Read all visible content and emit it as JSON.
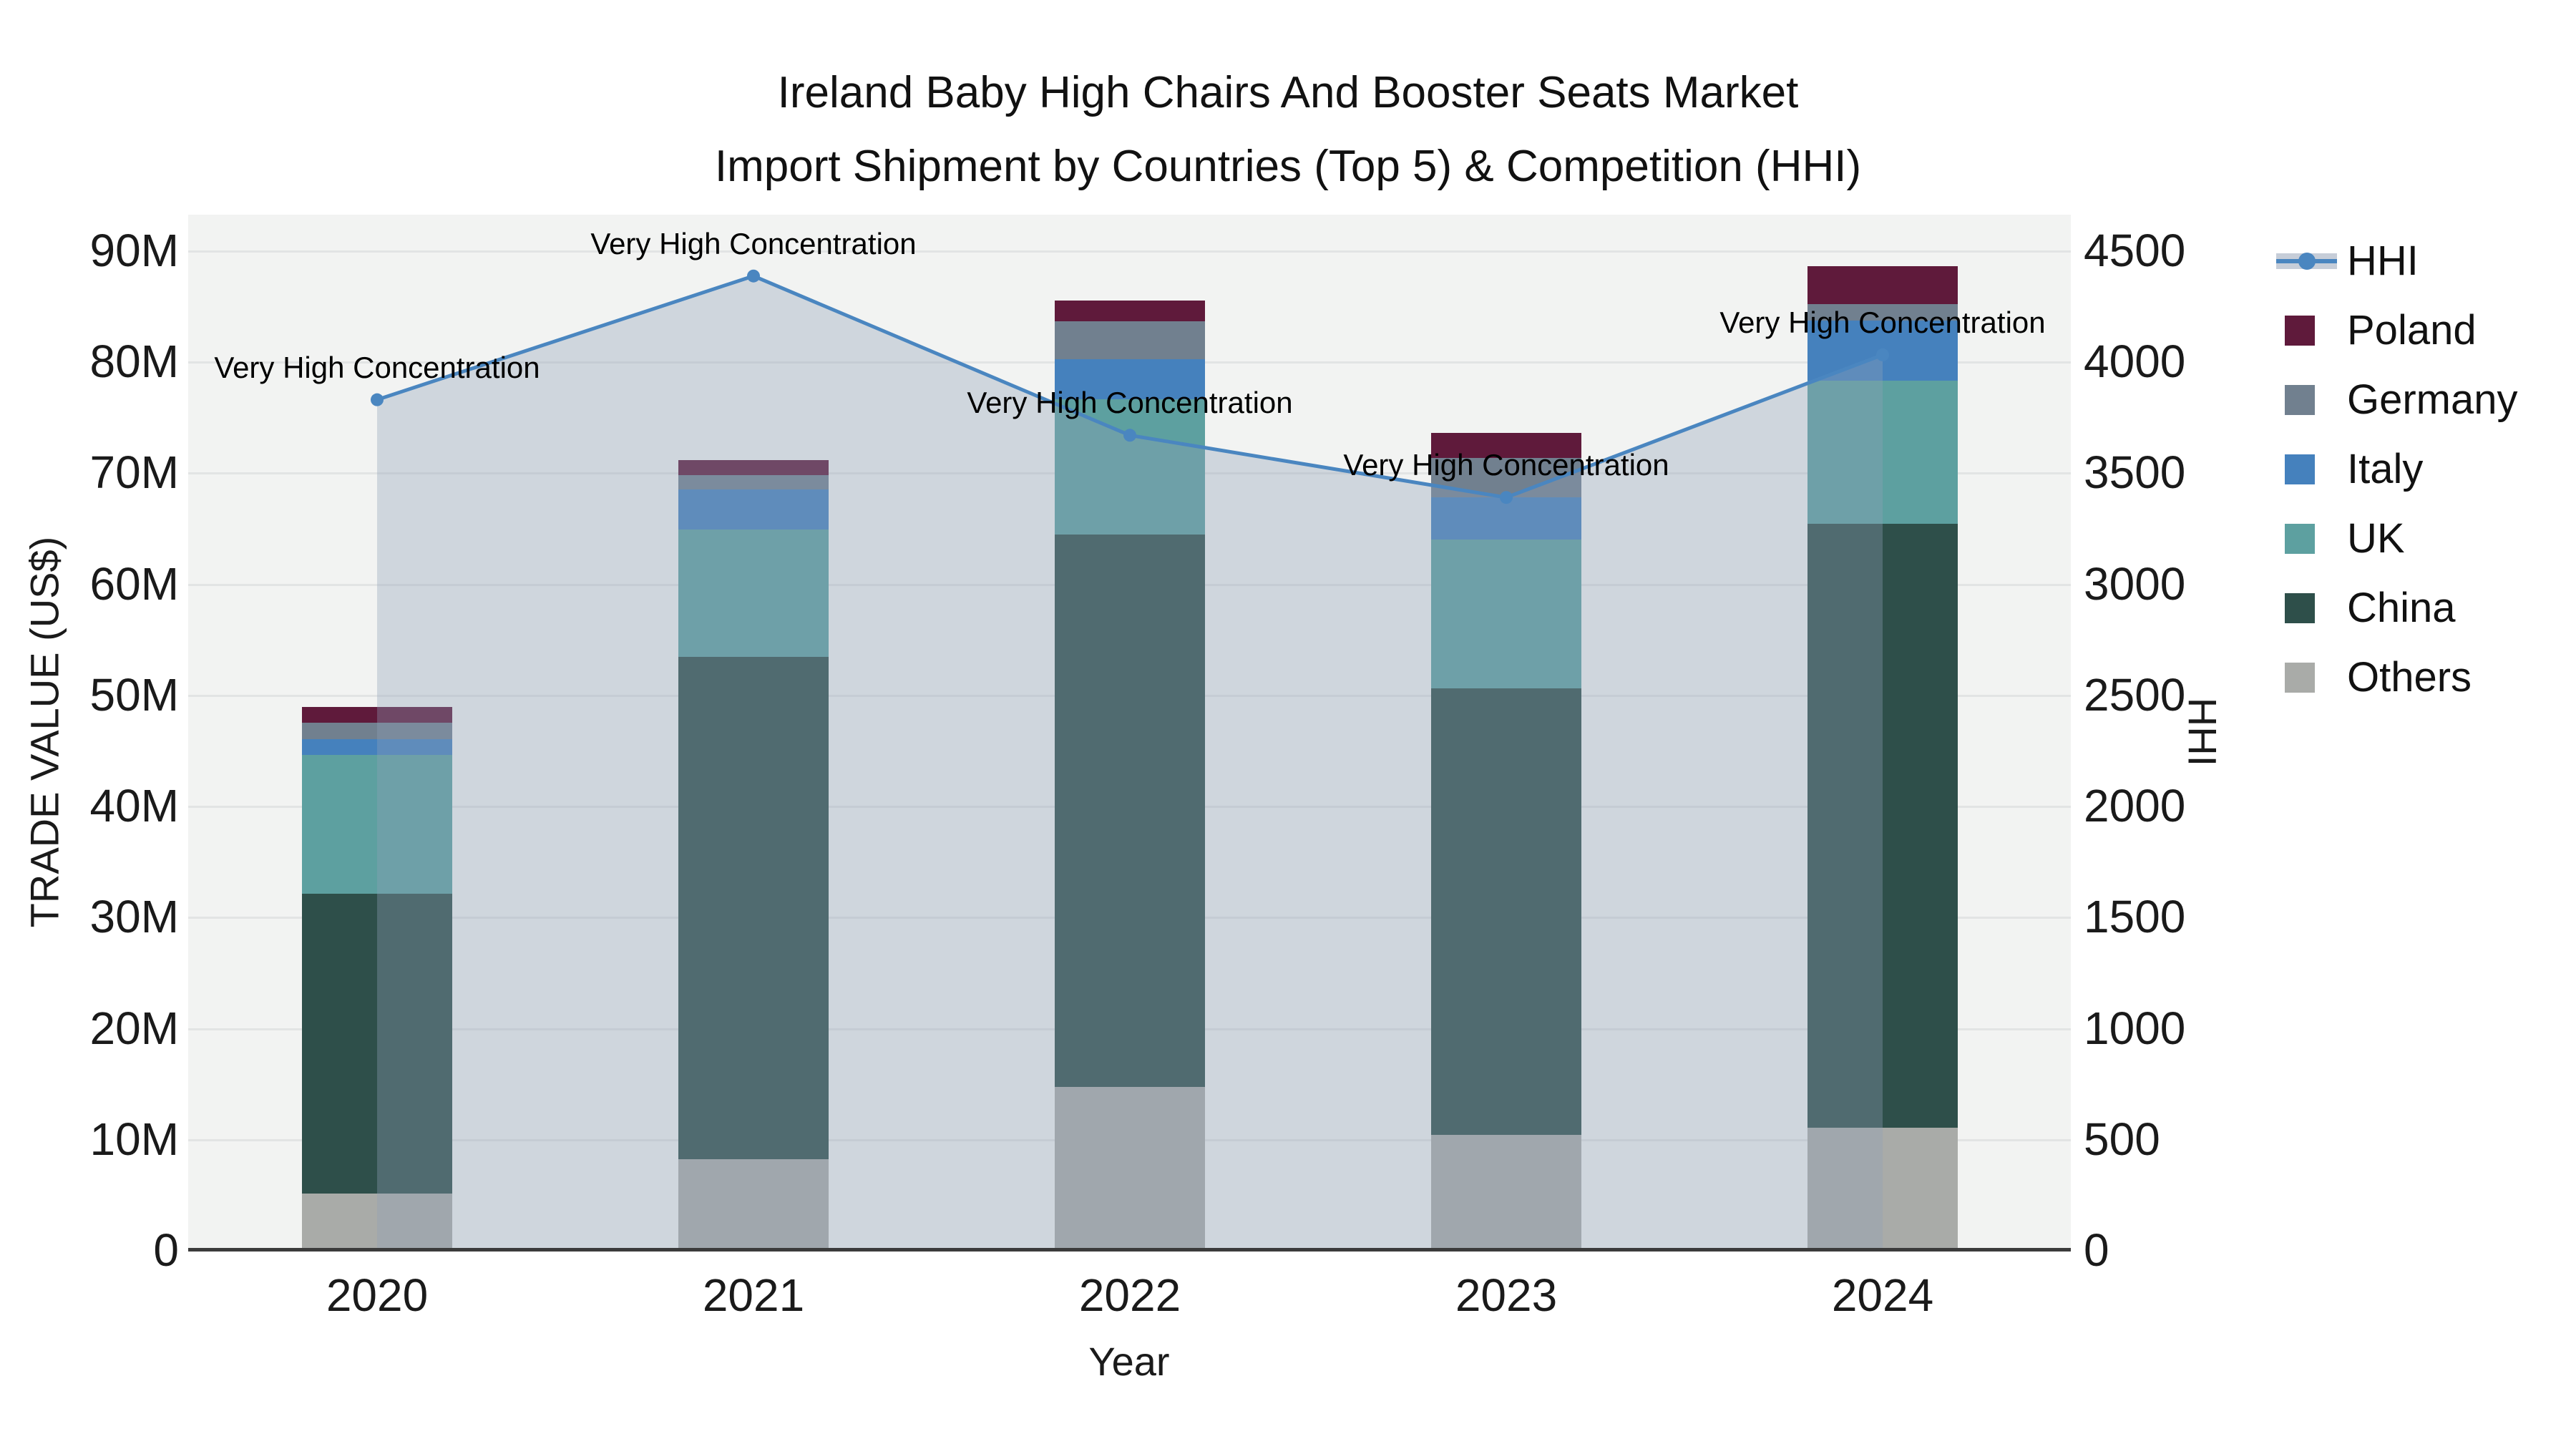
{
  "title": {
    "line1": "Ireland Baby High Chairs And Booster Seats Market",
    "line2": "Import Shipment by Countries (Top 5) & Competition (HHI)"
  },
  "axes": {
    "x": {
      "title": "Year",
      "ticks": [
        "2020",
        "2021",
        "2022",
        "2023",
        "2024"
      ]
    },
    "y_left": {
      "title": "TRADE VALUE (US$)",
      "ticks": [
        "0",
        "10M",
        "20M",
        "30M",
        "40M",
        "50M",
        "60M",
        "70M",
        "80M",
        "90M"
      ]
    },
    "y_right": {
      "title": "HHI",
      "ticks": [
        "0",
        "500",
        "1000",
        "1500",
        "2000",
        "2500",
        "3000",
        "3500",
        "4000",
        "4500"
      ]
    }
  },
  "annotation_text": "Very High Concentration",
  "colors": {
    "hhi_line": "#4a86c0",
    "hhi_fill": "rgba(143,160,184,0.35)",
    "poland": "#5f1a3b",
    "germany": "#71808f",
    "italy": "#4581bd",
    "uk": "#5da0a0",
    "china": "#2e4f4a",
    "others": "#a9aba8",
    "plot_bg": "#f2f3f2",
    "grid_line": "#e2e4e4",
    "axis_line": "#3b3b3b",
    "legend_fill_sample": "#c6cdd8"
  },
  "legend": {
    "items": [
      {
        "label": "HHI",
        "key": "hhi",
        "type": "line"
      },
      {
        "label": "Poland",
        "key": "poland",
        "type": "square"
      },
      {
        "label": "Germany",
        "key": "germany",
        "type": "square"
      },
      {
        "label": "Italy",
        "key": "italy",
        "type": "square"
      },
      {
        "label": "UK",
        "key": "uk",
        "type": "square"
      },
      {
        "label": "China",
        "key": "china",
        "type": "square"
      },
      {
        "label": "Others",
        "key": "others",
        "type": "square"
      }
    ]
  },
  "chart_data": {
    "type": "stacked-bar+line",
    "categories": [
      "2020",
      "2021",
      "2022",
      "2023",
      "2024"
    ],
    "bar_unit": "Million US$ (trade value)",
    "stack_order_bottom_to_top": [
      "Others",
      "China",
      "UK",
      "Italy",
      "Germany",
      "Poland"
    ],
    "series": [
      {
        "name": "Poland",
        "values": [
          1.4,
          1.3,
          1.9,
          2.3,
          3.4
        ]
      },
      {
        "name": "Germany",
        "values": [
          1.5,
          1.3,
          3.4,
          3.5,
          1.5
        ]
      },
      {
        "name": "Italy",
        "values": [
          1.4,
          3.6,
          3.6,
          3.8,
          5.4
        ]
      },
      {
        "name": "UK",
        "values": [
          12.5,
          11.5,
          12.2,
          13.4,
          12.9
        ]
      },
      {
        "name": "China",
        "values": [
          27.0,
          45.2,
          49.7,
          40.2,
          54.4
        ]
      },
      {
        "name": "Others",
        "values": [
          5.1,
          8.2,
          14.7,
          10.4,
          11.0
        ]
      }
    ],
    "bar_totals_M": [
      48.9,
      71.1,
      85.5,
      73.6,
      88.6
    ],
    "line_series": {
      "name": "HHI",
      "axis": "right",
      "values": [
        3828,
        4385,
        3668,
        3388,
        4030
      ],
      "point_annotations": [
        "Very High Concentration",
        "Very High Concentration",
        "Very High Concentration",
        "Very High Concentration",
        "Very High Concentration"
      ]
    },
    "title": "Ireland Baby High Chairs And Booster Seats Market — Import Shipment by Countries (Top 5) & Competition (HHI)",
    "xlabel": "Year",
    "ylabel_left": "TRADE VALUE (US$)",
    "ylabel_right": "HHI",
    "ylim_left": [
      0,
      93000000
    ],
    "ylim_right": [
      0,
      4660
    ],
    "grid": "horizontal",
    "legend_position": "right"
  }
}
